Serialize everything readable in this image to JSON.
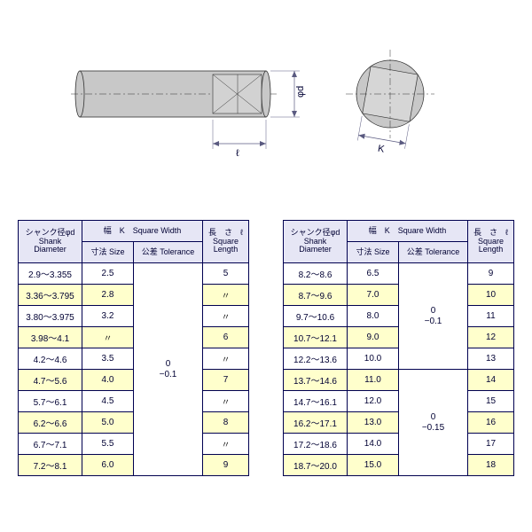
{
  "colors": {
    "header_bg": "#e6e6f5",
    "alt_bg": "#ffffcc",
    "border": "#000050",
    "text": "#000033",
    "shank_fill": "#c8c8c8",
    "shank_stroke": "#333333",
    "dim_line": "#5a5a80"
  },
  "diagram_labels": {
    "phi_d": "φd",
    "ell": "ℓ",
    "K": "K"
  },
  "headers": {
    "shank_jp": "シャンク径φd",
    "shank_en1": "Shank",
    "shank_en2": "Diameter",
    "width_top": "幅　K　Square Width",
    "size_jp": "寸法",
    "size_en": "Size",
    "tol_jp": "公差",
    "tol_en": "Tolerance",
    "len_jp": "長　さ　ℓ",
    "len_en1": "Square",
    "len_en2": "Length"
  },
  "tol_left": "0\n−0.1",
  "tol_right_upper": "0\n−0.1",
  "tol_right_lower": "0\n−0.15",
  "ditto": "〃",
  "left_rows": [
    {
      "d": "2.9～3.355",
      "size": "2.5",
      "len": "5",
      "alt": false
    },
    {
      "d": "3.36～3.795",
      "size": "2.8",
      "len": "〃",
      "alt": true
    },
    {
      "d": "3.80～3.975",
      "size": "3.2",
      "len": "〃",
      "alt": false
    },
    {
      "d": "3.98～4.1",
      "size": "〃",
      "len": "6",
      "alt": true
    },
    {
      "d": "4.2～4.6",
      "size": "3.5",
      "len": "〃",
      "alt": false
    },
    {
      "d": "4.7～5.6",
      "size": "4.0",
      "len": "7",
      "alt": true
    },
    {
      "d": "5.7～6.1",
      "size": "4.5",
      "len": "〃",
      "alt": false
    },
    {
      "d": "6.2～6.6",
      "size": "5.0",
      "len": "8",
      "alt": true
    },
    {
      "d": "6.7～7.1",
      "size": "5.5",
      "len": "〃",
      "alt": false
    },
    {
      "d": "7.2～8.1",
      "size": "6.0",
      "len": "9",
      "alt": true
    }
  ],
  "right_rows": [
    {
      "d": "8.2～8.6",
      "size": "6.5",
      "len": "9",
      "alt": false
    },
    {
      "d": "8.7～9.6",
      "size": "7.0",
      "len": "10",
      "alt": true
    },
    {
      "d": "9.7～10.6",
      "size": "8.0",
      "len": "11",
      "alt": false
    },
    {
      "d": "10.7～12.1",
      "size": "9.0",
      "len": "12",
      "alt": true
    },
    {
      "d": "12.2～13.6",
      "size": "10.0",
      "len": "13",
      "alt": false
    },
    {
      "d": "13.7～14.6",
      "size": "11.0",
      "len": "14",
      "alt": true
    },
    {
      "d": "14.7～16.1",
      "size": "12.0",
      "len": "15",
      "alt": false
    },
    {
      "d": "16.2～17.1",
      "size": "13.0",
      "len": "16",
      "alt": true
    },
    {
      "d": "17.2～18.6",
      "size": "14.0",
      "len": "17",
      "alt": false
    },
    {
      "d": "18.7～20.0",
      "size": "15.0",
      "len": "18",
      "alt": true
    }
  ],
  "right_tol_split": 5
}
